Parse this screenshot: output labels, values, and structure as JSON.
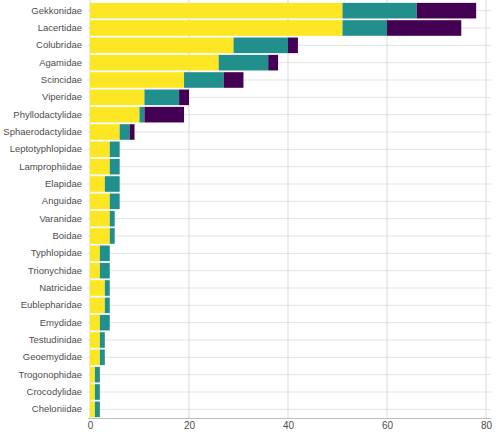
{
  "chart_data": {
    "type": "bar",
    "orientation": "horizontal",
    "stacked": true,
    "grid": true,
    "categories": [
      "Gekkonidae",
      "Lacertidae",
      "Colubridae",
      "Agamidae",
      "Scincidae",
      "Viperidae",
      "Phyllodactylidae",
      "Sphaerodactylidae",
      "Leptotyphlopidae",
      "Lamprophiidae",
      "Elapidae",
      "Anguidae",
      "Varanidae",
      "Boidae",
      "Typhlopidae",
      "Trionychidae",
      "Natricidae",
      "Eublepharidae",
      "Emydidae",
      "Testudinidae",
      "Geoemydidae",
      "Trogonophidae",
      "Crocodylidae",
      "Cheloniidae"
    ],
    "series": [
      {
        "color": "#FDE725",
        "values": [
          51,
          51,
          29,
          26,
          19,
          11,
          10,
          6,
          4,
          4,
          3,
          4,
          4,
          4,
          2,
          2,
          3,
          3,
          2,
          2,
          2,
          1,
          1,
          1
        ]
      },
      {
        "color": "#21908C",
        "values": [
          15,
          9,
          11,
          10,
          8,
          7,
          1,
          2,
          2,
          2,
          3,
          2,
          1,
          1,
          2,
          2,
          1,
          1,
          2,
          1,
          1,
          1,
          1,
          1
        ]
      },
      {
        "color": "#440154",
        "values": [
          12,
          15,
          2,
          2,
          4,
          2,
          8,
          1,
          0,
          0,
          0,
          0,
          0,
          0,
          0,
          0,
          0,
          0,
          0,
          0,
          0,
          0,
          0,
          0
        ]
      }
    ],
    "xlim": [
      -0.5,
      81
    ],
    "xticks": [
      0,
      20,
      40,
      60,
      80
    ]
  }
}
